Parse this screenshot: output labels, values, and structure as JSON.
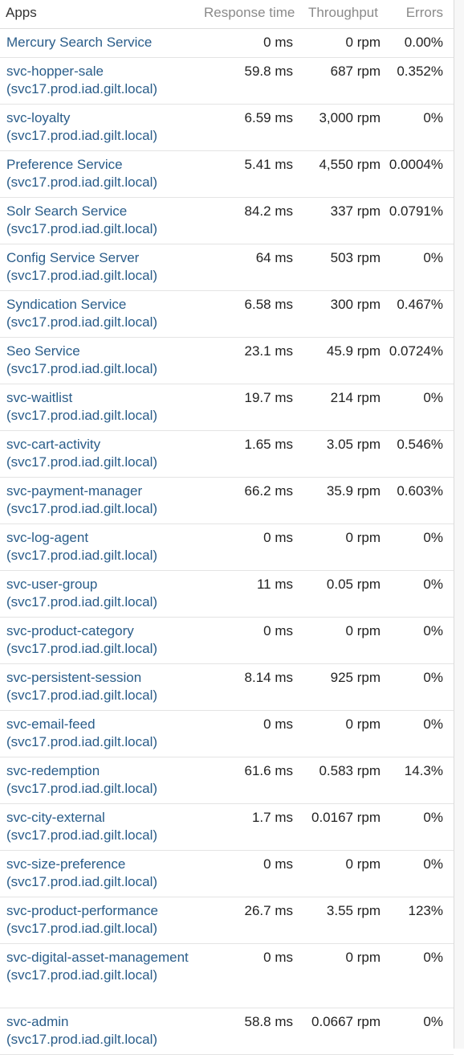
{
  "header": {
    "apps": "Apps",
    "response_time": "Response time",
    "throughput": "Throughput",
    "errors": "Errors"
  },
  "rows": [
    {
      "name": "Mercury Search Service",
      "rt": "0 ms",
      "tp": "0 rpm",
      "err": "0.00%"
    },
    {
      "name": "svc-hopper-sale (svc17.prod.iad.gilt.local)",
      "rt": "59.8 ms",
      "tp": "687 rpm",
      "err": "0.352%"
    },
    {
      "name": "svc-loyalty (svc17.prod.iad.gilt.local)",
      "rt": "6.59 ms",
      "tp": "3,000 rpm",
      "err": "0%"
    },
    {
      "name": "Preference Service (svc17.prod.iad.gilt.local)",
      "rt": "5.41 ms",
      "tp": "4,550 rpm",
      "err": "0.0004%"
    },
    {
      "name": "Solr Search Service (svc17.prod.iad.gilt.local)",
      "rt": "84.2 ms",
      "tp": "337 rpm",
      "err": "0.0791%"
    },
    {
      "name": "Config Service Server (svc17.prod.iad.gilt.local)",
      "rt": "64 ms",
      "tp": "503 rpm",
      "err": "0%"
    },
    {
      "name": "Syndication Service (svc17.prod.iad.gilt.local)",
      "rt": "6.58 ms",
      "tp": "300 rpm",
      "err": "0.467%"
    },
    {
      "name": "Seo Service (svc17.prod.iad.gilt.local)",
      "rt": "23.1 ms",
      "tp": "45.9 rpm",
      "err": "0.0724%"
    },
    {
      "name": "svc-waitlist (svc17.prod.iad.gilt.local)",
      "rt": "19.7 ms",
      "tp": "214 rpm",
      "err": "0%"
    },
    {
      "name": "svc-cart-activity (svc17.prod.iad.gilt.local)",
      "rt": "1.65 ms",
      "tp": "3.05 rpm",
      "err": "0.546%"
    },
    {
      "name": "svc-payment-manager (svc17.prod.iad.gilt.local)",
      "rt": "66.2 ms",
      "tp": "35.9 rpm",
      "err": "0.603%"
    },
    {
      "name": "svc-log-agent (svc17.prod.iad.gilt.local)",
      "rt": "0 ms",
      "tp": "0 rpm",
      "err": "0%"
    },
    {
      "name": "svc-user-group (svc17.prod.iad.gilt.local)",
      "rt": "11 ms",
      "tp": "0.05 rpm",
      "err": "0%"
    },
    {
      "name": "svc-product-category (svc17.prod.iad.gilt.local)",
      "rt": "0 ms",
      "tp": "0 rpm",
      "err": "0%"
    },
    {
      "name": "svc-persistent-session (svc17.prod.iad.gilt.local)",
      "rt": "8.14 ms",
      "tp": "925 rpm",
      "err": "0%"
    },
    {
      "name": "svc-email-feed (svc17.prod.iad.gilt.local)",
      "rt": "0 ms",
      "tp": "0 rpm",
      "err": "0%"
    },
    {
      "name": "svc-redemption (svc17.prod.iad.gilt.local)",
      "rt": "61.6 ms",
      "tp": "0.583 rpm",
      "err": "14.3%"
    },
    {
      "name": "svc-city-external (svc17.prod.iad.gilt.local)",
      "rt": "1.7 ms",
      "tp": "0.0167 rpm",
      "err": "0%"
    },
    {
      "name": "svc-size-preference (svc17.prod.iad.gilt.local)",
      "rt": "0 ms",
      "tp": "0 rpm",
      "err": "0%"
    },
    {
      "name": "svc-product-performance (svc17.prod.iad.gilt.local)",
      "rt": "26.7 ms",
      "tp": "3.55 rpm",
      "err": "123%"
    },
    {
      "name": "svc-digital-asset-management (svc17.prod.iad.gilt.local)",
      "rt": "0 ms",
      "tp": "0 rpm",
      "err": "0%"
    },
    {
      "name": "svc-admin (svc17.prod.iad.gilt.local)",
      "rt": "58.8 ms",
      "tp": "0.0667 rpm",
      "err": "0%"
    }
  ]
}
